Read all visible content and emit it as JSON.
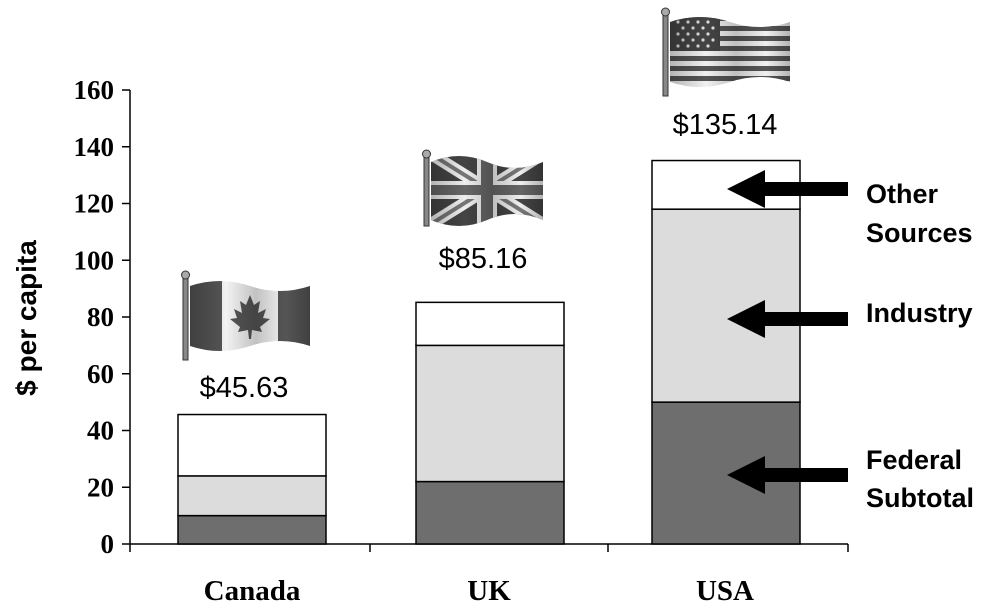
{
  "chart_data": {
    "type": "bar",
    "stacked": true,
    "categories": [
      "Canada",
      "UK",
      "USA"
    ],
    "series": [
      {
        "name": "Federal Subtotal",
        "values": [
          10,
          22,
          50
        ],
        "color": "#6e6e6e"
      },
      {
        "name": "Industry",
        "values": [
          14,
          48,
          68
        ],
        "color": "#dcdcdc"
      },
      {
        "name": "Other Sources",
        "values": [
          21.63,
          15.16,
          17.14
        ],
        "color": "#ffffff"
      }
    ],
    "totals": [
      45.63,
      85.16,
      135.14
    ],
    "total_labels": [
      "$45.63",
      "$85.16",
      "$135.14"
    ],
    "ylabel": "$ per capita",
    "ylim": [
      0,
      160
    ],
    "yticks": [
      0,
      20,
      40,
      60,
      80,
      100,
      120,
      140,
      160
    ],
    "legend_placement": "right",
    "legend_labels": [
      {
        "series": "Other Sources",
        "lines": [
          "Other",
          "Sources"
        ]
      },
      {
        "series": "Industry",
        "lines": [
          "Industry"
        ]
      },
      {
        "series": "Federal Subtotal",
        "lines": [
          "Federal",
          "Subtotal"
        ]
      }
    ],
    "icons": [
      "canada-flag-icon",
      "uk-flag-icon",
      "usa-flag-icon"
    ]
  }
}
